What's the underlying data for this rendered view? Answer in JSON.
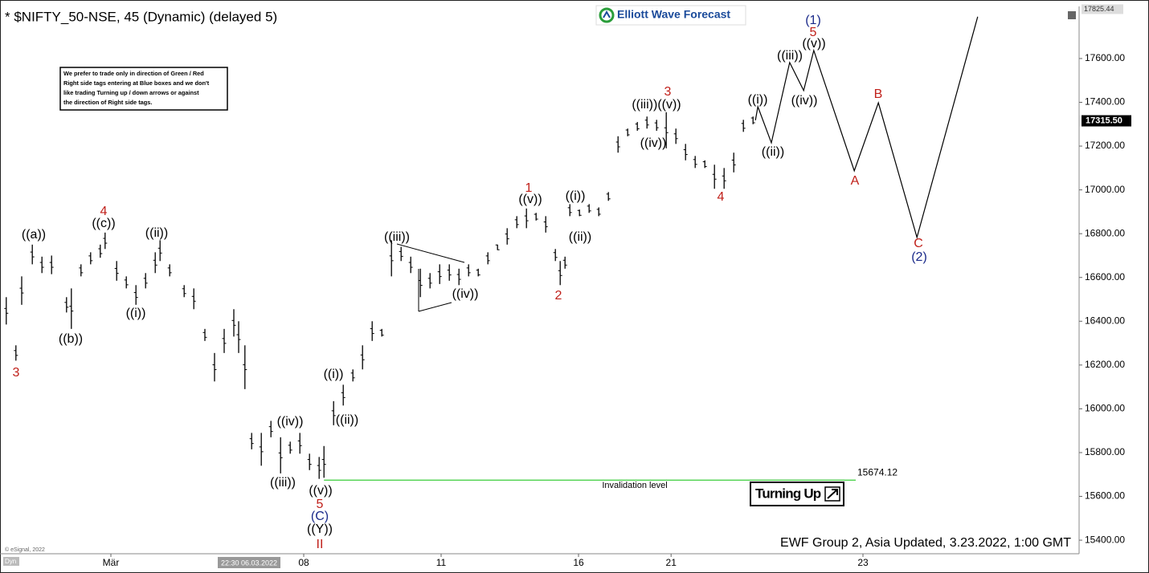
{
  "chart_data": {
    "type": "price_bars",
    "title": "* $NIFTY_50-NSE, 45 (Dynamic) (delayed 5)",
    "logo": "Elliott Wave Forecast",
    "note": [
      "We prefer to trade only in direction of Green / Red",
      "Right side tags entering at Blue boxes and we don't",
      "like trading Turning up / down arrows or against",
      "the direction of Right side tags."
    ],
    "footer": "EWF Group 2, Asia Updated, 3.23.2022, 1:00 GMT",
    "copyright": "© eSignal, 2022",
    "mode_label": "Dyn",
    "cursor_time": "22:30 06.03.2022",
    "turning_label": "Turning Up",
    "bar_color": "#000000",
    "ylim": [
      15338,
      17838
    ],
    "xlim": [
      0,
      224
    ],
    "yticks": [
      {
        "value": 15400,
        "label": "15400.00"
      },
      {
        "value": 15600,
        "label": "15600.00"
      },
      {
        "value": 15800,
        "label": "15800.00"
      },
      {
        "value": 16000,
        "label": "16000.00"
      },
      {
        "value": 16200,
        "label": "16200.00"
      },
      {
        "value": 16400,
        "label": "16400.00"
      },
      {
        "value": 16600,
        "label": "16600.00"
      },
      {
        "value": 16800,
        "label": "16800.00"
      },
      {
        "value": 17000,
        "label": "17000.00"
      },
      {
        "value": 17200,
        "label": "17200.00"
      },
      {
        "value": 17400,
        "label": "17400.00"
      },
      {
        "value": 17600,
        "label": "17600.00"
      }
    ],
    "xticks": [
      {
        "value": 23,
        "label": "Mär"
      },
      {
        "value": 63,
        "label": "08"
      },
      {
        "value": 91.5,
        "label": "11"
      },
      {
        "value": 120,
        "label": "16"
      },
      {
        "value": 139.2,
        "label": "21"
      },
      {
        "value": 179,
        "label": "23"
      }
    ],
    "high_label": 17825.44,
    "last_price": {
      "value": 17315.5,
      "label": "17315.50"
    },
    "bars": {
      "x": [
        1.3,
        3.3,
        4.5,
        6.7,
        8.7,
        10.7,
        13.8,
        14.8,
        16.8,
        18.8,
        20.8,
        21.8,
        24.2,
        26.2,
        28.2,
        30.2,
        32.2,
        33.2,
        35.2,
        38.2,
        40.2,
        42.5,
        44.5,
        46.5,
        48.5,
        49.5,
        50.8,
        52.2,
        54.2,
        56.2,
        58.2,
        60.2,
        62.2,
        64.2,
        66.2,
        67.2,
        69.2,
        71.2,
        73.2,
        75.2,
        77.2,
        79.2,
        81.2,
        83.2,
        85.2,
        87.2,
        89.2,
        91.2,
        93.2,
        95.2,
        97.2,
        99.2,
        101.2,
        103.2,
        105.2,
        107.2,
        109.2,
        111.2,
        113.2,
        115.2,
        116.2,
        117.2,
        118.2,
        120.2,
        122.2,
        124.2,
        126.2,
        128.2,
        130.2,
        132.2,
        134.2,
        136.2,
        138.2,
        140.2,
        142.2,
        144.2,
        146.2,
        148.2,
        150.2,
        152.2,
        154.2,
        156.2
      ],
      "high": [
        16510,
        16290,
        16605,
        16750,
        16695,
        16700,
        16510,
        16550,
        16660,
        16715,
        16750,
        16805,
        16675,
        16605,
        16565,
        16620,
        16715,
        16770,
        16660,
        16565,
        16550,
        16365,
        16255,
        16365,
        16455,
        16400,
        16290,
        15890,
        15890,
        15945,
        15870,
        15850,
        15890,
        15795,
        15780,
        15830,
        16035,
        16110,
        16180,
        16290,
        16400,
        16365,
        16770,
        16740,
        16695,
        16640,
        16620,
        16660,
        16660,
        16640,
        16660,
        16640,
        16715,
        16750,
        16825,
        16880,
        16915,
        16895,
        16880,
        16730,
        16675,
        16695,
        16935,
        16910,
        16935,
        16920,
        16990,
        17245,
        17280,
        17310,
        17335,
        17320,
        17355,
        17280,
        17210,
        17155,
        17135,
        17115,
        17100,
        17170,
        17320,
        17335
      ],
      "low": [
        16385,
        16220,
        16475,
        16660,
        16620,
        16615,
        16440,
        16365,
        16605,
        16660,
        16690,
        16730,
        16585,
        16550,
        16475,
        16550,
        16620,
        16675,
        16605,
        16510,
        16455,
        16310,
        16125,
        16255,
        16330,
        16255,
        16090,
        15815,
        15740,
        15870,
        15705,
        15795,
        15795,
        15720,
        15680,
        15685,
        15925,
        16015,
        16125,
        16180,
        16310,
        16330,
        16605,
        16675,
        16620,
        16510,
        16550,
        16570,
        16585,
        16565,
        16605,
        16605,
        16660,
        16725,
        16750,
        16825,
        16825,
        16860,
        16805,
        16675,
        16565,
        16640,
        16880,
        16880,
        16895,
        16880,
        16950,
        17170,
        17245,
        17270,
        17280,
        17270,
        17190,
        17210,
        17135,
        17100,
        17100,
        17005,
        17005,
        17080,
        17265,
        17300
      ]
    },
    "projection": {
      "color": "#000000",
      "x": [
        156.7,
        157.2,
        160,
        163.8,
        166.7,
        168.8,
        177.2,
        182.2,
        190.2,
        202.8
      ],
      "values": [
        17318,
        17380,
        17215,
        17582,
        17454,
        17637,
        17087,
        17398,
        16783,
        17791
      ]
    },
    "invalidation": {
      "value": 15674.12,
      "label": "Invalidation level",
      "color": "#4cd24c",
      "x": [
        67.2,
        177.5
      ]
    },
    "wave_labels": [
      {
        "text": "3",
        "color": "#c0201a"
      },
      {
        "text": "((a))",
        "color": "#000000"
      },
      {
        "text": "((b))",
        "color": "#000000"
      },
      {
        "text": "4",
        "color": "#c0201a"
      },
      {
        "text": "((c))",
        "color": "#000000"
      },
      {
        "text": "((ii))",
        "color": "#000000"
      },
      {
        "text": "((i))",
        "color": "#000000"
      },
      {
        "text": "((iii))",
        "color": "#000000"
      },
      {
        "text": "((iv))",
        "color": "#000000"
      },
      {
        "text": "((v))",
        "color": "#000000"
      },
      {
        "text": "5",
        "color": "#c0201a"
      },
      {
        "text": "(C)",
        "color": "#1a2a8a"
      },
      {
        "text": "((Y))",
        "color": "#000000"
      },
      {
        "text": "II",
        "color": "#c0201a"
      },
      {
        "text": "((i))",
        "color": "#000000"
      },
      {
        "text": "((ii))",
        "color": "#000000"
      },
      {
        "text": "((iii))",
        "color": "#000000"
      },
      {
        "text": "((iv))",
        "color": "#000000"
      },
      {
        "text": "1",
        "color": "#c0201a"
      },
      {
        "text": "((v))",
        "color": "#000000"
      },
      {
        "text": "2",
        "color": "#c0201a"
      },
      {
        "text": "((i))",
        "color": "#000000"
      },
      {
        "text": "((ii))",
        "color": "#000000"
      },
      {
        "text": "3",
        "color": "#c0201a"
      },
      {
        "text": "((iii))((v))",
        "color": "#000000"
      },
      {
        "text": "((iv))",
        "color": "#000000"
      },
      {
        "text": "4",
        "color": "#c0201a"
      },
      {
        "text": "((i))",
        "color": "#000000"
      },
      {
        "text": "((ii))",
        "color": "#000000"
      },
      {
        "text": "((iii))",
        "color": "#000000"
      },
      {
        "text": "((iv))",
        "color": "#000000"
      },
      {
        "text": "(1)",
        "color": "#1a2a8a"
      },
      {
        "text": "5",
        "color": "#c0201a"
      },
      {
        "text": "((v))",
        "color": "#000000"
      },
      {
        "text": "A",
        "color": "#c0201a"
      },
      {
        "text": "B",
        "color": "#c0201a"
      },
      {
        "text": "C",
        "color": "#c0201a"
      },
      {
        "text": "(2)",
        "color": "#1a2a8a"
      }
    ]
  }
}
